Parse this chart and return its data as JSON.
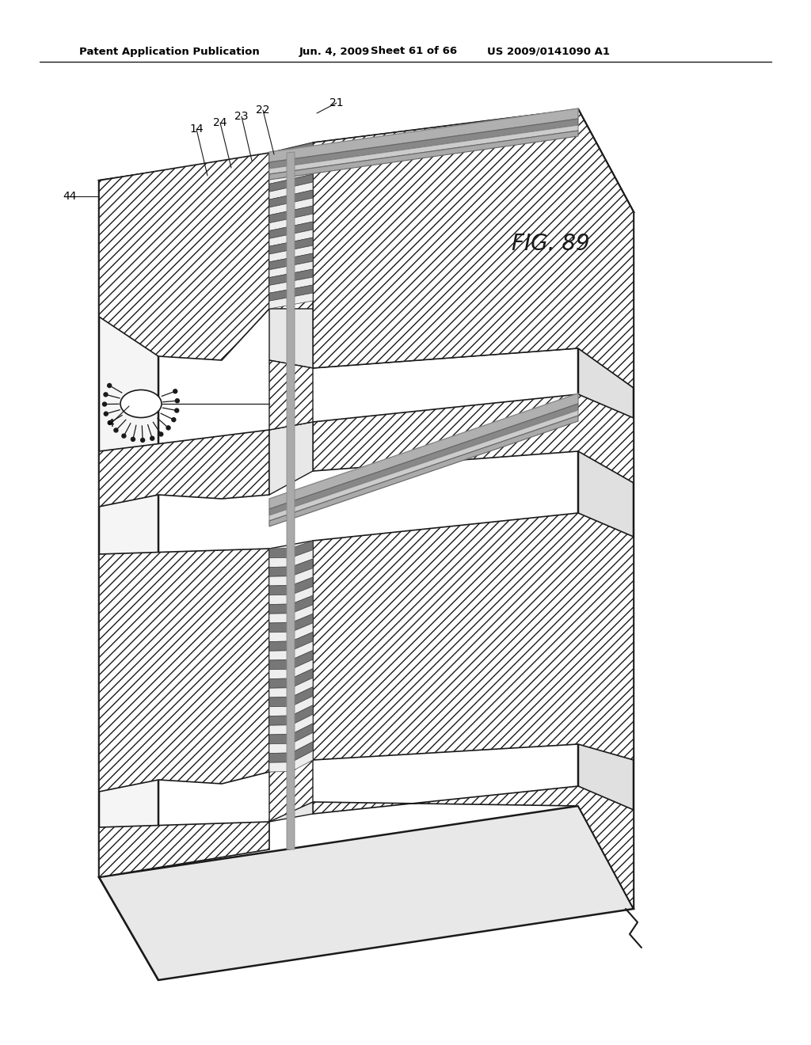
{
  "background_color": "#ffffff",
  "header_text": "Patent Application Publication",
  "header_date": "Jun. 4, 2009",
  "header_sheet": "Sheet 61 of 66",
  "header_patent": "US 2009/0141090 A1",
  "fig_label": "FIG. 89",
  "line_color": "#1a1a1a"
}
